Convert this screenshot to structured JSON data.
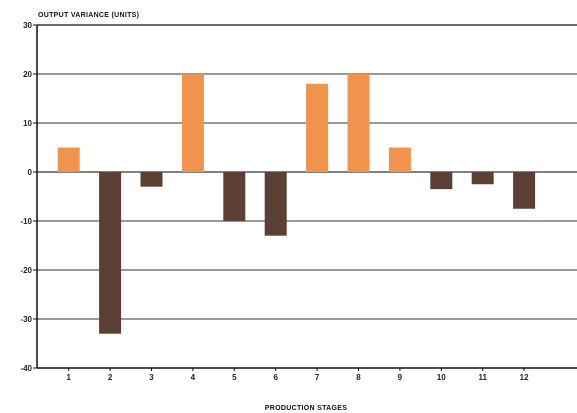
{
  "chart_data": {
    "type": "bar",
    "title": "",
    "ylabel": "OUTPUT VARIANCE (UNITS)",
    "xlabel": "PRODUCTION STAGES",
    "categories": [
      "1",
      "2",
      "3",
      "4",
      "5",
      "6",
      "7",
      "8",
      "9",
      "10",
      "11",
      "12"
    ],
    "values": [
      5,
      -33,
      -3,
      20,
      -10,
      -13,
      18,
      20,
      5,
      -3.5,
      -2.5,
      -7.5
    ],
    "ylim": [
      -40,
      30
    ],
    "yticks": [
      -40,
      -30,
      -20,
      -10,
      0,
      10,
      20,
      30
    ],
    "grid": true,
    "legend": "none",
    "colors": {
      "positive": "#f0944d",
      "negative": "#5c4033",
      "grid": "#333333",
      "frame": "#111111"
    }
  }
}
